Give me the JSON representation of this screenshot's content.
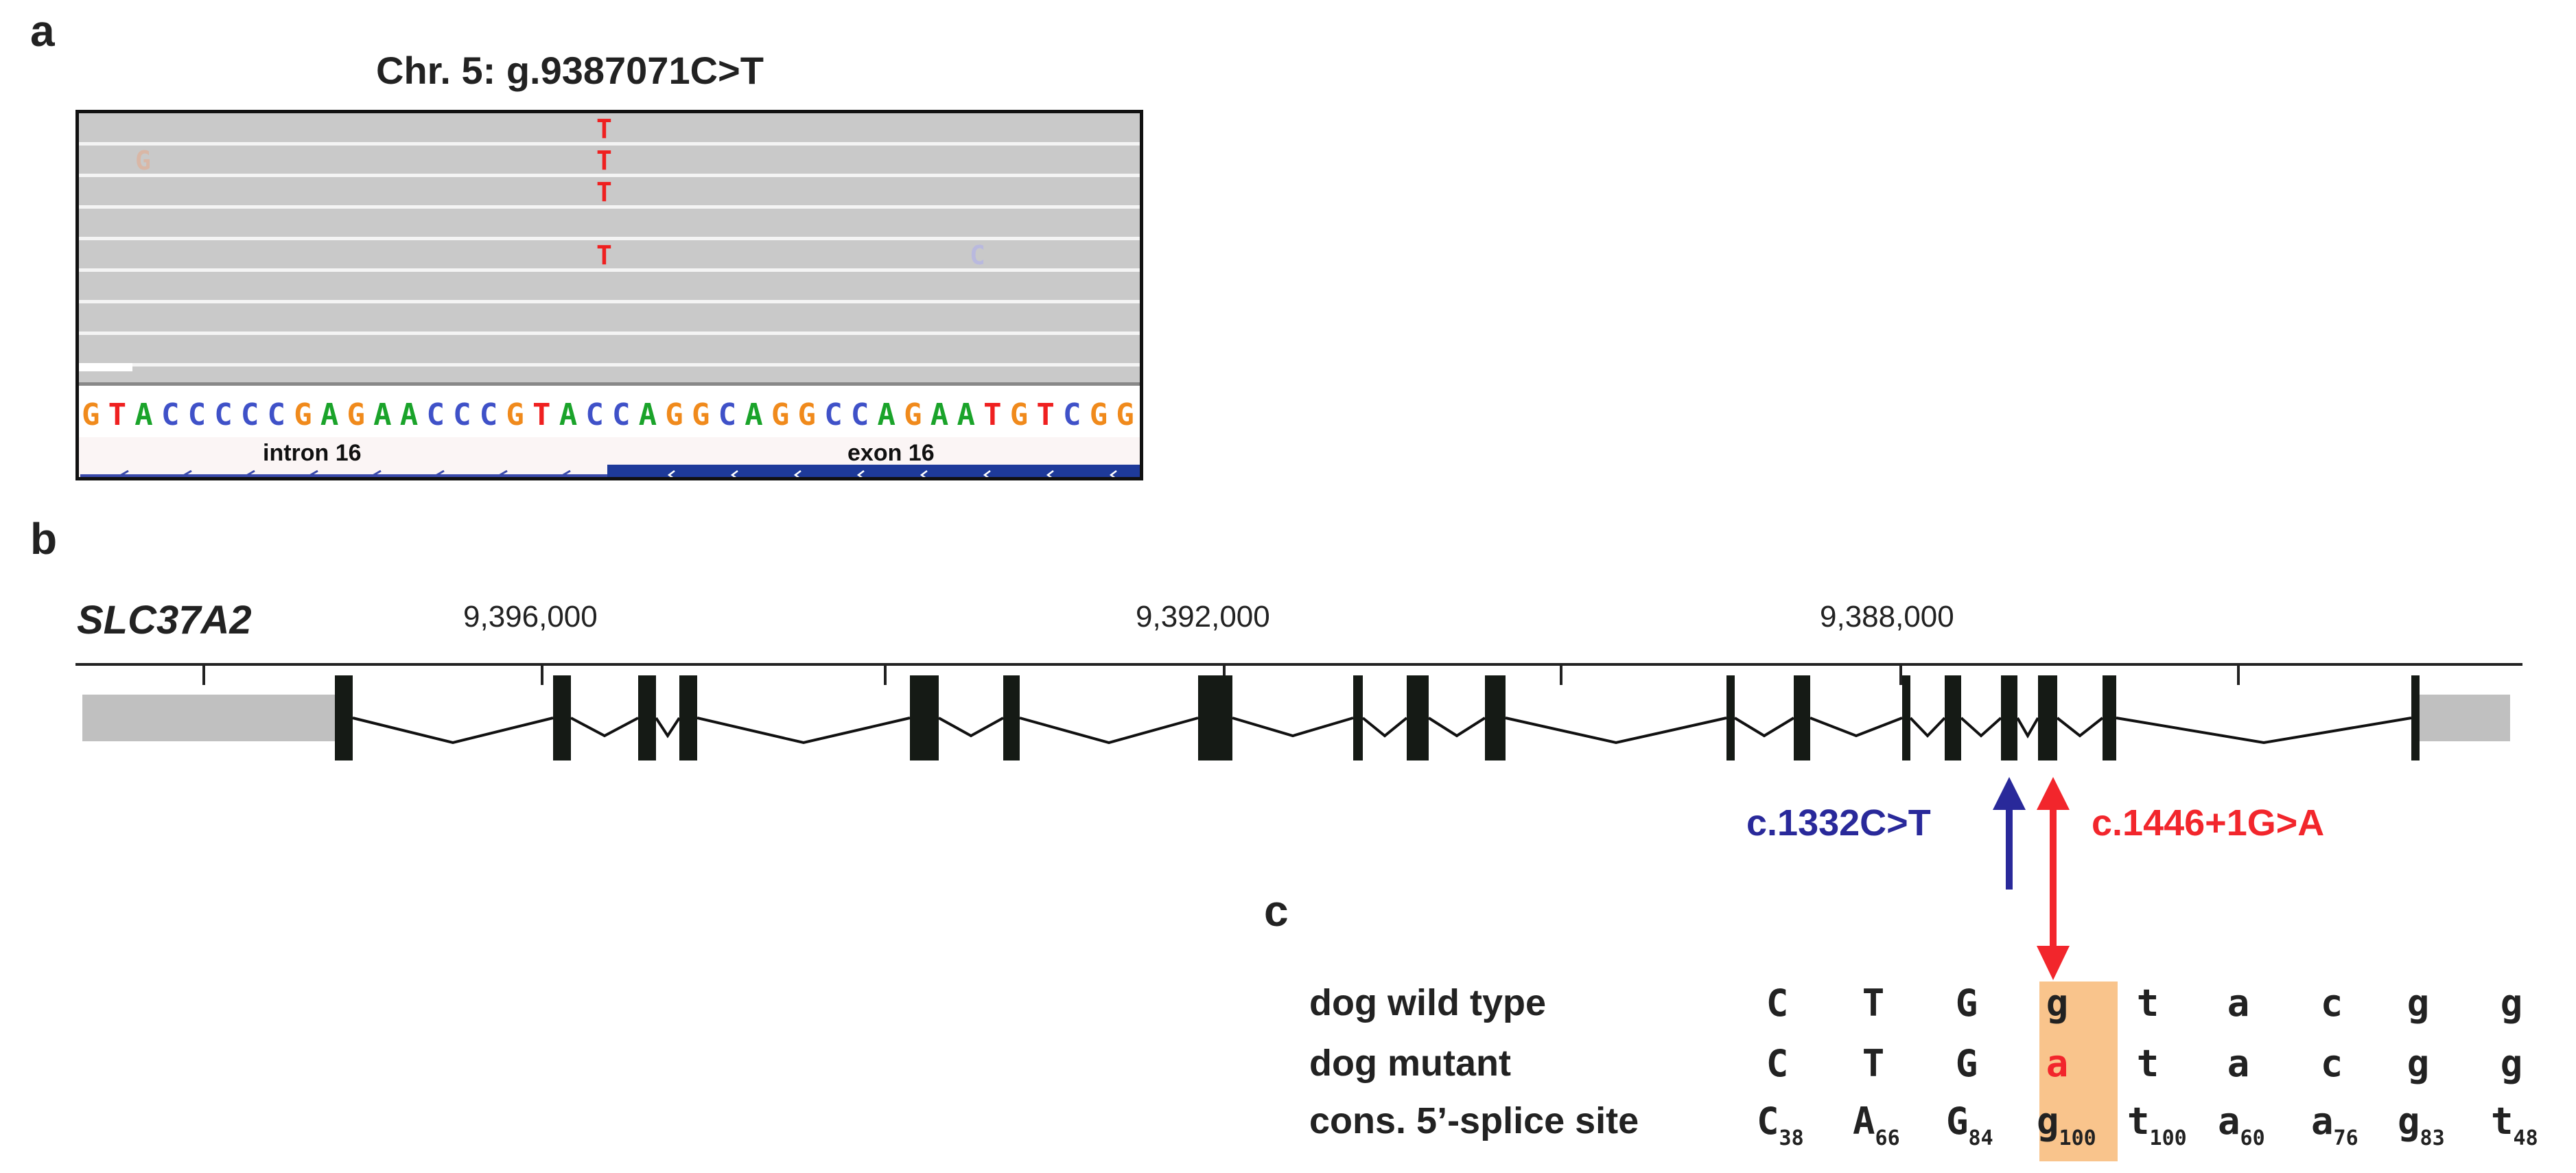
{
  "panels": {
    "a": "a",
    "b": "b",
    "c": "c"
  },
  "igv": {
    "title": "Chr. 5: g.9387071C>T",
    "reference_sequence": "GTACCCCCGAGAACCCGTACCAGGCAGGCCAGAATGTCGG",
    "base_colors": {
      "A": "#1aa32a",
      "C": "#3f51c8",
      "G": "#f08a1c",
      "T": "#ef2020"
    },
    "variant_base": "T",
    "faint_bases": [
      "G",
      "C"
    ],
    "feature_labels": {
      "intron": "intron 16",
      "exon": "exon 16"
    },
    "colors": {
      "read": "#c9c9c9",
      "exon_bar": "#1e3a9a",
      "intron_line": "#3949ab"
    }
  },
  "gene": {
    "name": "SLC37A2",
    "axis_ticks": [
      "9,396,000",
      "9,392,000",
      "9,388,000"
    ],
    "utr_color": "#c0c0c0",
    "exon_color": "#151a15",
    "mutations": [
      {
        "label": "c.1332C>T",
        "color": "#29299a"
      },
      {
        "label": "c.1446+1G>A",
        "color": "#f2262c"
      }
    ]
  },
  "splice": {
    "rows": [
      {
        "label": "dog wild type",
        "bases": [
          "C",
          "T",
          "G",
          "g",
          "t",
          "a",
          "c",
          "g",
          "g"
        ]
      },
      {
        "label": "dog mutant",
        "bases": [
          "C",
          "T",
          "G",
          "a",
          "t",
          "a",
          "c",
          "g",
          "g"
        ]
      },
      {
        "label": "cons. 5’-splice site",
        "bases": [
          "C",
          "A",
          "G",
          "g",
          "t",
          "a",
          "a",
          "g",
          "t"
        ],
        "subs": [
          "38",
          "66",
          "84",
          "100",
          "100",
          "60",
          "76",
          "83",
          "48"
        ]
      }
    ],
    "highlight_color": "#f9c48c",
    "mutant_base_color": "#f2262c"
  }
}
